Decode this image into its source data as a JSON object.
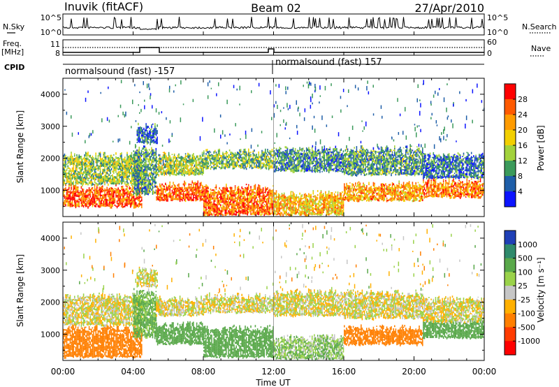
{
  "header": {
    "station": "Inuvik (fitACF)",
    "beam": "Beam 02",
    "date": "27/Apr/2010"
  },
  "top_panels": {
    "nsky_label": "N.Sky",
    "nsky_ticks": [
      "10^5",
      "10^0"
    ],
    "nsearch_label": "N.Search",
    "nsearch_ticks": [
      "10^5",
      "10^0"
    ],
    "freq_label_1": "Freq.",
    "freq_label_2": "[MHz]",
    "freq_ticks": [
      "11",
      "8"
    ],
    "nave_label": "Nave",
    "nave_ticks": [
      "60",
      "0"
    ],
    "cpid_label": "CPID",
    "cpid_segments": [
      {
        "name": "normalsound (fast) -157",
        "start_hour": 0,
        "end_hour": 12
      },
      {
        "name": "normalsound (fast) 157",
        "start_hour": 12,
        "end_hour": 24
      }
    ]
  },
  "colorbars": {
    "power": {
      "label": "Power [dB]",
      "ticks": [
        "28",
        "24",
        "20",
        "16",
        "12",
        "8",
        "4"
      ],
      "colors": [
        "#ff0000",
        "#ff5a00",
        "#ff9b00",
        "#f2cf00",
        "#a2d23c",
        "#3b9a5b",
        "#1e5ea8",
        "#0c14ff"
      ]
    },
    "velocity": {
      "label": "Velocity [m s⁻¹]",
      "ticks": [
        "1000",
        "500",
        "100",
        "25",
        "-25",
        "-100",
        "-500",
        "-1000"
      ],
      "colors": [
        "#1f3fb6",
        "#2f8a6c",
        "#59a84a",
        "#9ad24a",
        "#c6c6c6",
        "#ffb000",
        "#ff7f00",
        "#ff3b00",
        "#ff0000"
      ]
    }
  },
  "axes": {
    "ylabel": "Slant Range [km]",
    "y_ticks": [
      "4000",
      "3000",
      "2000",
      "1000"
    ],
    "x_ticks": [
      "00:00",
      "04:00",
      "08:00",
      "12:00",
      "16:00",
      "20:00",
      "00:00"
    ],
    "xlabel": "Time UT"
  },
  "chart_data": [
    {
      "type": "heatmap",
      "title": "",
      "xlabel": "Time UT",
      "ylabel": "Slant Range [km]",
      "xlim": [
        0,
        24
      ],
      "ylim": [
        180,
        4500
      ],
      "colorbar_label": "Power [dB]",
      "colorbar_range": [
        0,
        32
      ],
      "bands": [
        {
          "start_hour": 0.0,
          "end_hour": 4.5,
          "range_km": [
            500,
            1100
          ],
          "value": 26
        },
        {
          "start_hour": 0.0,
          "end_hour": 4.5,
          "range_km": [
            1200,
            2100
          ],
          "value": 14
        },
        {
          "start_hour": 4.0,
          "end_hour": 5.3,
          "range_km": [
            900,
            2300
          ],
          "value": 10
        },
        {
          "start_hour": 4.2,
          "end_hour": 5.4,
          "range_km": [
            2500,
            3000
          ],
          "value": 7
        },
        {
          "start_hour": 5.3,
          "end_hour": 8.0,
          "range_km": [
            700,
            1200
          ],
          "value": 26
        },
        {
          "start_hour": 5.3,
          "end_hour": 8.0,
          "range_km": [
            1500,
            2100
          ],
          "value": 14
        },
        {
          "start_hour": 8.0,
          "end_hour": 12.0,
          "range_km": [
            250,
            1100
          ],
          "value": 25
        },
        {
          "start_hour": 8.0,
          "end_hour": 12.0,
          "range_km": [
            1700,
            2200
          ],
          "value": 12
        },
        {
          "start_hour": 12.0,
          "end_hour": 16.0,
          "range_km": [
            250,
            900
          ],
          "value": 20
        },
        {
          "start_hour": 12.0,
          "end_hour": 16.0,
          "range_km": [
            1600,
            2300
          ],
          "value": 9
        },
        {
          "start_hour": 16.0,
          "end_hour": 20.5,
          "range_km": [
            700,
            1200
          ],
          "value": 22
        },
        {
          "start_hour": 16.0,
          "end_hour": 20.5,
          "range_km": [
            1500,
            2300
          ],
          "value": 10
        },
        {
          "start_hour": 20.5,
          "end_hour": 24.0,
          "range_km": [
            800,
            1300
          ],
          "value": 24
        },
        {
          "start_hour": 20.5,
          "end_hour": 24.0,
          "range_km": [
            1400,
            2100
          ],
          "value": 7
        }
      ]
    },
    {
      "type": "heatmap",
      "title": "",
      "xlabel": "Time UT",
      "ylabel": "Slant Range [km]",
      "xlim": [
        0,
        24
      ],
      "ylim": [
        180,
        4500
      ],
      "colorbar_label": "Velocity [m s⁻¹]",
      "colorbar_ticks": [
        1000,
        500,
        100,
        25,
        -25,
        -100,
        -500,
        -1000
      ],
      "bands": [
        {
          "start_hour": 0.0,
          "end_hour": 4.5,
          "range_km": [
            300,
            1200
          ],
          "value": -200
        },
        {
          "start_hour": 0.0,
          "end_hour": 4.5,
          "range_km": [
            1300,
            2200
          ],
          "value": 0
        },
        {
          "start_hour": 4.0,
          "end_hour": 5.3,
          "range_km": [
            900,
            2300
          ],
          "value": 150
        },
        {
          "start_hour": 4.2,
          "end_hour": 5.4,
          "range_km": [
            2500,
            3000
          ],
          "value": 0
        },
        {
          "start_hour": 5.3,
          "end_hour": 8.0,
          "range_km": [
            700,
            1300
          ],
          "value": 300
        },
        {
          "start_hour": 5.3,
          "end_hour": 8.0,
          "range_km": [
            1600,
            2100
          ],
          "value": 0
        },
        {
          "start_hour": 8.0,
          "end_hour": 12.0,
          "range_km": [
            300,
            1200
          ],
          "value": 250
        },
        {
          "start_hour": 8.0,
          "end_hour": 12.0,
          "range_km": [
            1700,
            2200
          ],
          "value": 0
        },
        {
          "start_hour": 12.0,
          "end_hour": 16.0,
          "range_km": [
            250,
            900
          ],
          "value": 80
        },
        {
          "start_hour": 12.0,
          "end_hour": 16.0,
          "range_km": [
            1600,
            2300
          ],
          "value": 0
        },
        {
          "start_hour": 16.0,
          "end_hour": 20.5,
          "range_km": [
            700,
            1200
          ],
          "value": -250
        },
        {
          "start_hour": 16.0,
          "end_hour": 20.5,
          "range_km": [
            1500,
            2300
          ],
          "value": 0
        },
        {
          "start_hour": 20.5,
          "end_hour": 24.0,
          "range_km": [
            900,
            1400
          ],
          "value": 300
        },
        {
          "start_hour": 20.5,
          "end_hour": 24.0,
          "range_km": [
            1400,
            2100
          ],
          "value": 0
        }
      ]
    }
  ]
}
